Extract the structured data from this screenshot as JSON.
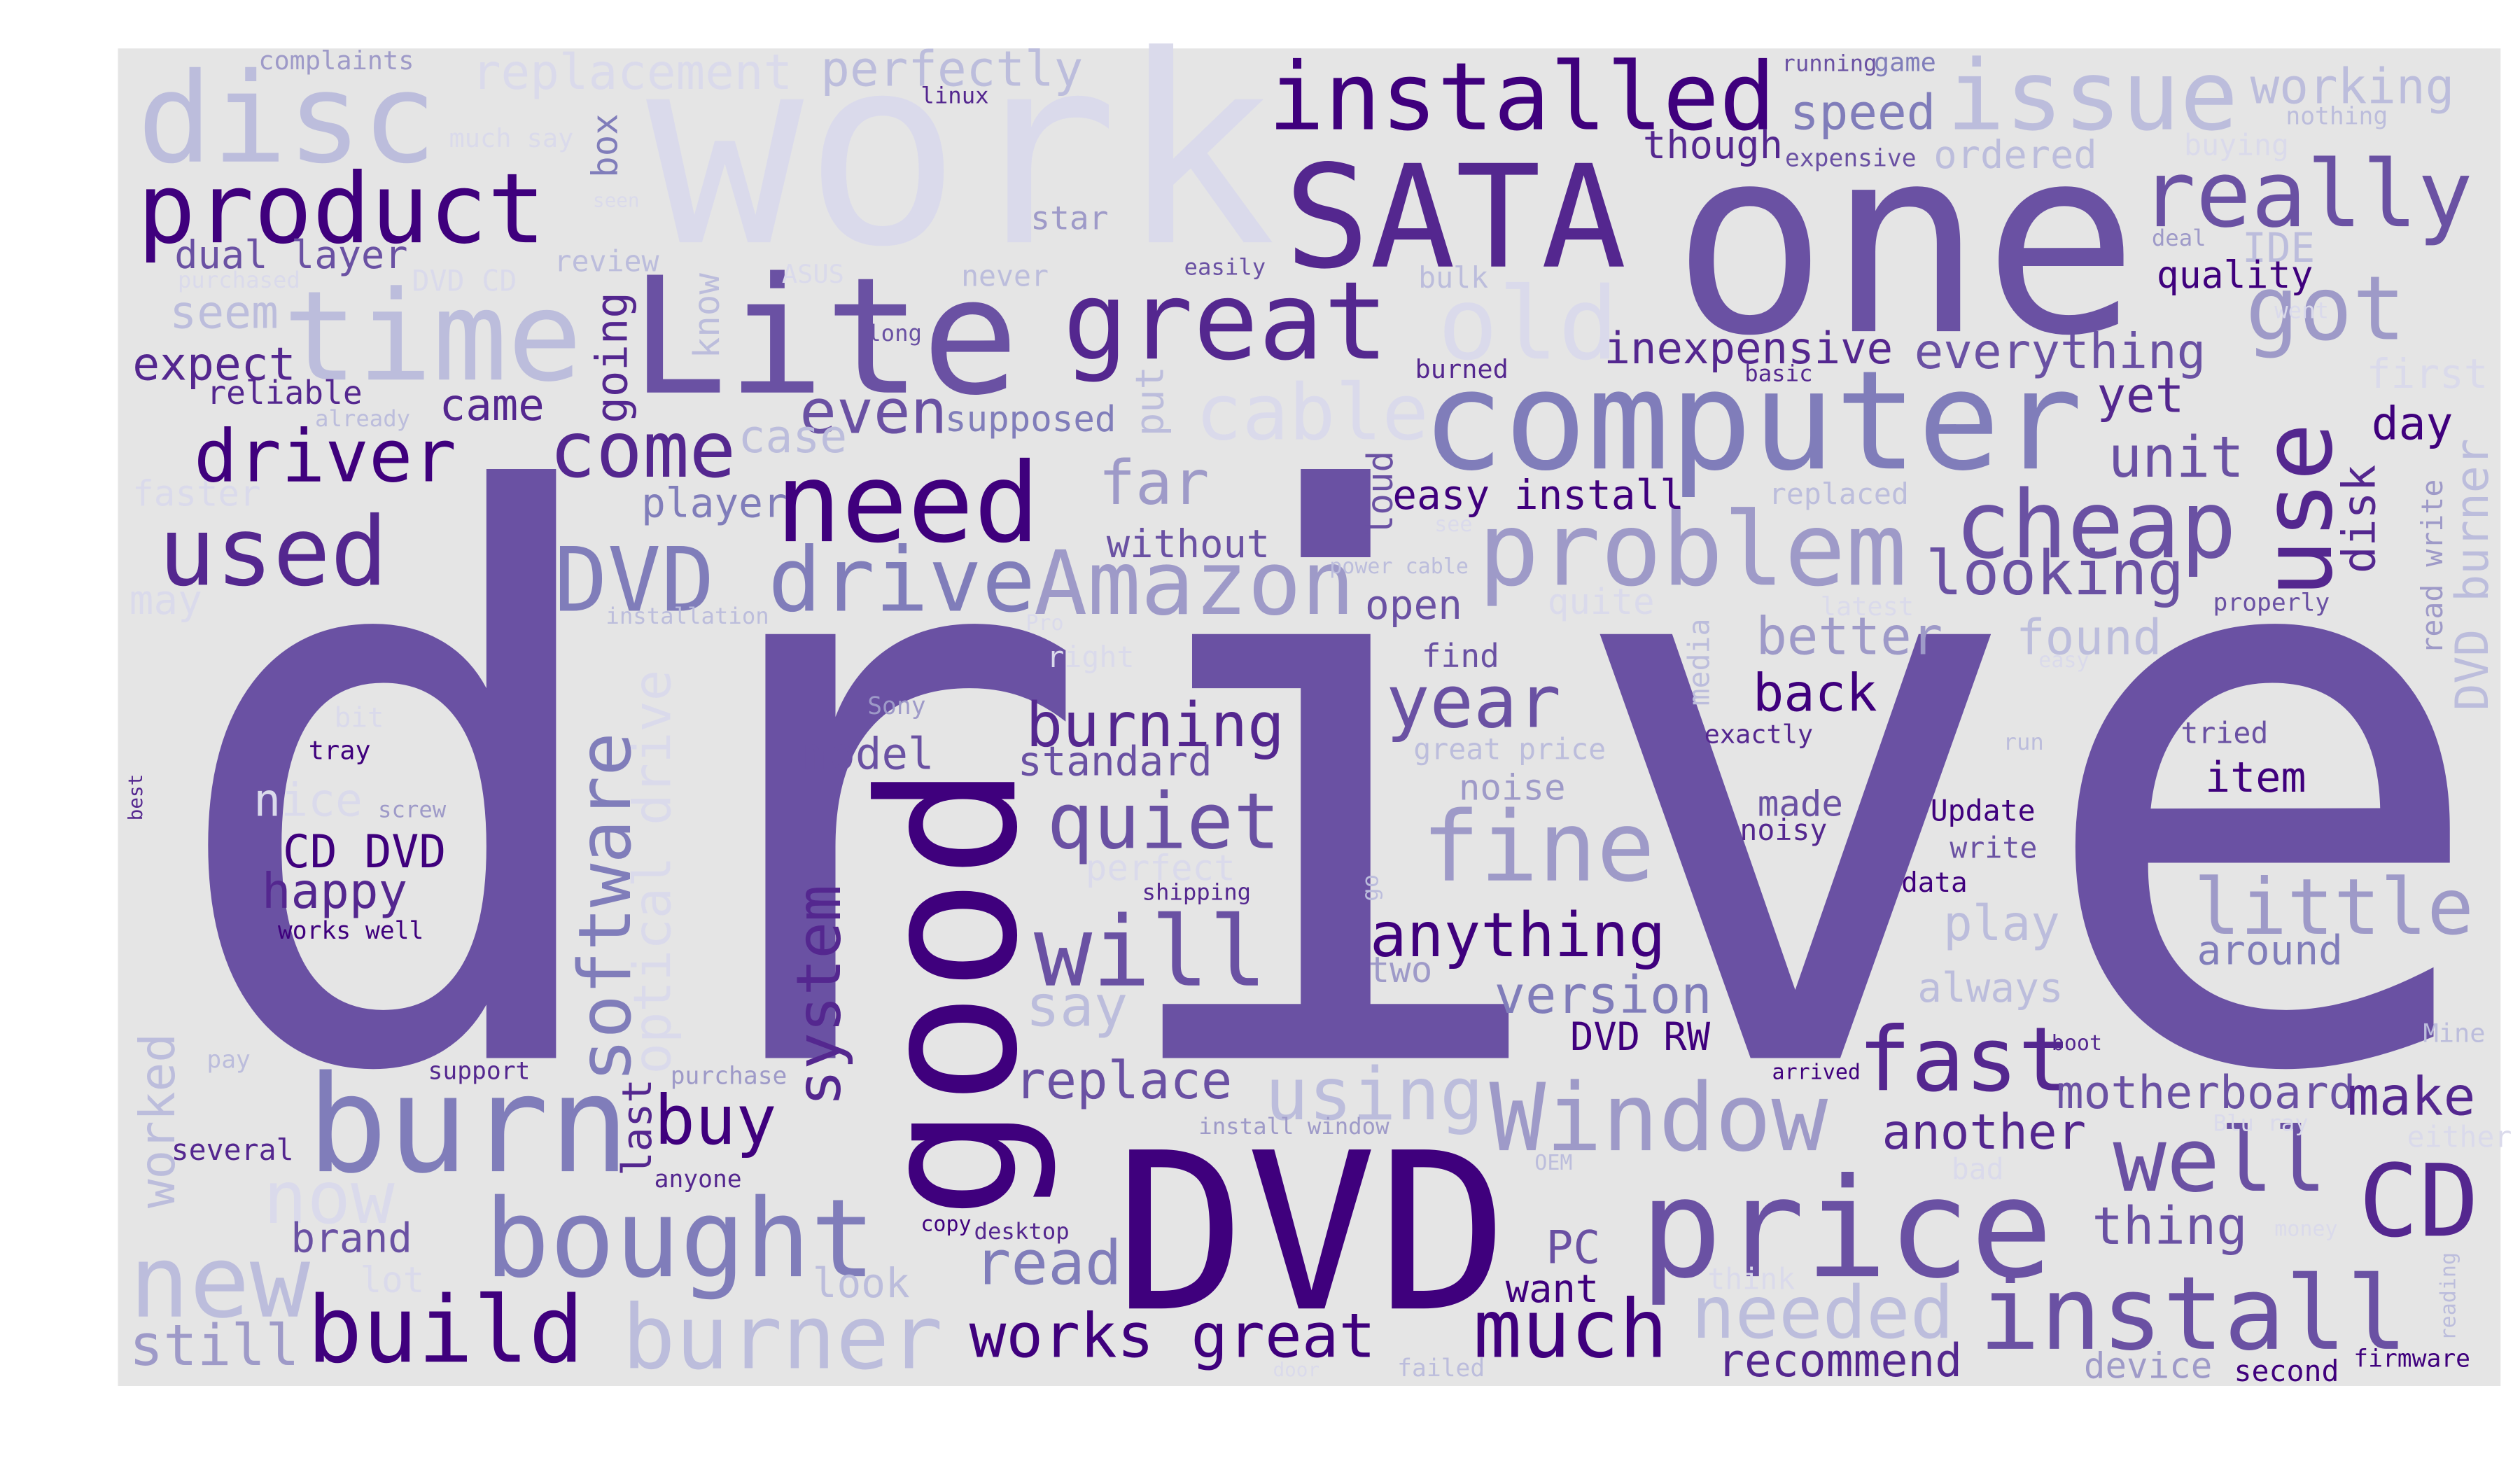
{
  "words": [
    "drive",
    "work",
    "one",
    "DVD",
    "SATA",
    "computer",
    "Lite",
    "disc",
    "installed",
    "issue",
    "product",
    "time",
    "great",
    "old",
    "really",
    "got",
    "use",
    "need",
    "cheap",
    "problem",
    "driver",
    "come",
    "used",
    "DVD drive",
    "Amazon",
    "burn",
    "good",
    "price",
    "bought",
    "build",
    "burner",
    "new",
    "now",
    "still",
    "Window",
    "install",
    "well",
    "CD",
    "fine",
    "will",
    "quiet",
    "burning",
    "year",
    "back",
    "better",
    "found",
    "fast",
    "little",
    "anything",
    "version",
    "DVD RW",
    "much",
    "works great",
    "needed",
    "recommend",
    "read",
    "PC",
    "want",
    "using",
    "replace",
    "buy",
    "say",
    "far",
    "without",
    "even",
    "case",
    "cable",
    "put",
    "inexpensive",
    "everything",
    "yet",
    "unit",
    "day",
    "first",
    "disk",
    "DVD burner",
    "read write",
    "looking",
    "easy install",
    "loud",
    "open",
    "find",
    "great price",
    "noise",
    "media",
    "standard",
    "model",
    "player",
    "supposed",
    "going",
    "know",
    "software",
    "optical drive",
    "system",
    "last",
    "came",
    "expect",
    "reliable",
    "seem",
    "dual layer",
    "perfectly",
    "replacement",
    "complaints",
    "linux",
    "much say",
    "box",
    "review",
    "DVD CD",
    "purchased",
    "ASUS",
    "never",
    "star",
    "easily",
    "bulk",
    "running",
    "game",
    "speed",
    "though",
    "expensive",
    "ordered",
    "working",
    "nothing",
    "buying",
    "deal",
    "IDE",
    "quality",
    "went",
    "long",
    "burned",
    "basic",
    "seen",
    "faster",
    "already",
    "may",
    "installation",
    "power cable",
    "see",
    "replaced",
    "quite",
    "latest",
    "properly",
    "Pro",
    "right",
    "easy",
    "Sony",
    "bit",
    "tray",
    "best",
    "nice",
    "screw",
    "exactly",
    "run",
    "tried",
    "item",
    "made",
    "noisy",
    "Update",
    "write",
    "data",
    "CD DVD",
    "happy",
    "works well",
    "perfect",
    "shipping",
    "go",
    "two",
    "play",
    "around",
    "always",
    "Mine",
    "boot",
    "arrived",
    "motherboard",
    "make",
    "another",
    "Blu ray",
    "either",
    "bad",
    "thing",
    "money",
    "reading",
    "firmware",
    "second",
    "device",
    "think",
    "failed",
    "door",
    "look",
    "lot",
    "brand",
    "copy",
    "desktop",
    "anyone",
    "several",
    "worked",
    "pay",
    "support",
    "purchase",
    "install window",
    "OEM"
  ]
}
